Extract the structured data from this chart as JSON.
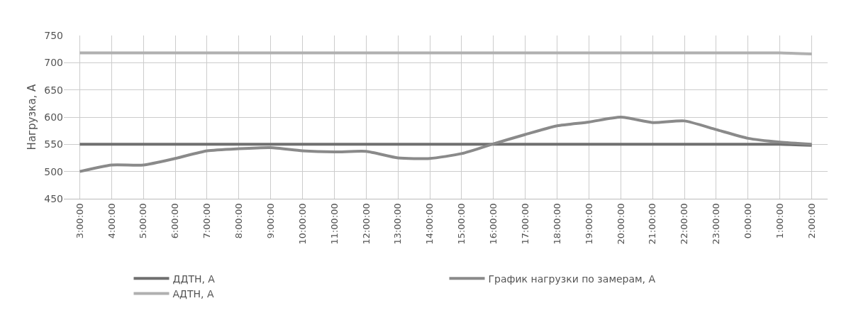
{
  "chart_data": {
    "type": "line",
    "ylabel": "Нагрузка, А",
    "categories": [
      "3:00:00",
      "4:00:00",
      "5:00:00",
      "6:00:00",
      "7:00:00",
      "8:00:00",
      "9:00:00",
      "10:00:00",
      "11:00:00",
      "12:00:00",
      "13:00:00",
      "14:00:00",
      "15:00:00",
      "16:00:00",
      "17:00:00",
      "18:00:00",
      "19:00:00",
      "20:00:00",
      "21:00:00",
      "22:00:00",
      "23:00:00",
      "0:00:00",
      "1:00:00",
      "2:00:00"
    ],
    "series": [
      {
        "name": "ДДТН, А",
        "color": "#707070",
        "values": [
          550,
          550,
          550,
          550,
          550,
          550,
          550,
          550,
          550,
          550,
          550,
          550,
          550,
          550,
          550,
          550,
          550,
          550,
          550,
          550,
          550,
          550,
          550,
          548
        ]
      },
      {
        "name": "График нагрузки по замерам, А",
        "color": "#8a8a8a",
        "values": [
          500,
          512,
          512,
          524,
          538,
          542,
          544,
          538,
          536,
          537,
          525,
          524,
          533,
          551,
          568,
          584,
          591,
          600,
          590,
          593,
          577,
          561,
          554,
          550
        ]
      },
      {
        "name": "АДТН, А",
        "color": "#b0b0b0",
        "values": [
          718,
          718,
          718,
          718,
          718,
          718,
          718,
          718,
          718,
          718,
          718,
          718,
          718,
          718,
          718,
          718,
          718,
          718,
          718,
          718,
          718,
          718,
          718,
          716
        ]
      }
    ],
    "ylim": [
      450,
      750
    ],
    "yticks": [
      450,
      500,
      550,
      600,
      650,
      700,
      750
    ],
    "grid": true,
    "legend": "bottom",
    "marker": "none",
    "line_style": "solid"
  }
}
